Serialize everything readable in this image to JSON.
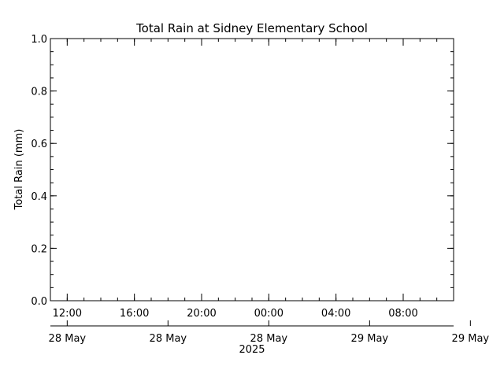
{
  "chart_data": {
    "type": "line",
    "title": "Total Rain at Sidney Elementary School",
    "ylabel": "Total Rain (mm)",
    "xlabel": "",
    "ylim": [
      0.0,
      1.0
    ],
    "yticks": [
      "0.0",
      "0.2",
      "0.4",
      "0.6",
      "0.8",
      "1.0"
    ],
    "xlim": [
      "2025-05-28 11:00",
      "2025-05-29 11:00"
    ],
    "xticks_time": [
      {
        "at": "2025-05-28 12:00",
        "label": "12:00"
      },
      {
        "at": "2025-05-28 16:00",
        "label": "16:00"
      },
      {
        "at": "2025-05-28 20:00",
        "label": "20:00"
      },
      {
        "at": "2025-05-29 00:00",
        "label": "00:00"
      },
      {
        "at": "2025-05-29 04:00",
        "label": "04:00"
      },
      {
        "at": "2025-05-29 08:00",
        "label": "08:00"
      }
    ],
    "xticks_date": [
      {
        "at": "2025-05-28 12:00",
        "label": "28 May"
      },
      {
        "at": "2025-05-28 18:00",
        "label": "28 May"
      },
      {
        "at": "2025-05-29 00:00",
        "label": "28 May"
      },
      {
        "at": "2025-05-29 06:00",
        "label": "29 May"
      },
      {
        "at": "2025-05-29 12:00",
        "label": "29 May"
      }
    ],
    "year_label": "2025",
    "series": [
      {
        "values": []
      }
    ],
    "grid": false
  }
}
